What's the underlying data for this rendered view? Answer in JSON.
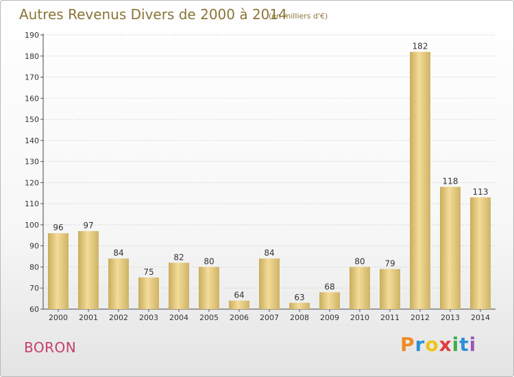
{
  "title": "Autres Revenus Divers de 2000 à 2014",
  "subtitle": "(en milliers d'€)",
  "commune": "BORON",
  "logo": {
    "letters": [
      "P",
      "r",
      "o",
      "x",
      "i",
      "t",
      "i"
    ],
    "colors": [
      "#f08a24",
      "#2f8fd6",
      "#f0c419",
      "#e23c3c",
      "#3fae49",
      "#2f8fd6",
      "#9b59b6"
    ]
  },
  "chart_data": {
    "type": "bar",
    "categories": [
      "2000",
      "2001",
      "2002",
      "2003",
      "2004",
      "2005",
      "2006",
      "2007",
      "2008",
      "2009",
      "2010",
      "2011",
      "2012",
      "2013",
      "2014"
    ],
    "values": [
      96,
      97,
      84,
      75,
      82,
      80,
      64,
      84,
      63,
      68,
      80,
      79,
      182,
      118,
      113
    ],
    "title": "Autres Revenus Divers de 2000 à 2014",
    "subtitle": "(en milliers d'€)",
    "ylim": [
      60,
      190
    ],
    "yticks": [
      60,
      70,
      80,
      90,
      100,
      110,
      120,
      130,
      140,
      150,
      160,
      170,
      180,
      190
    ],
    "grid": true,
    "bar_color": "#e9cf86"
  }
}
